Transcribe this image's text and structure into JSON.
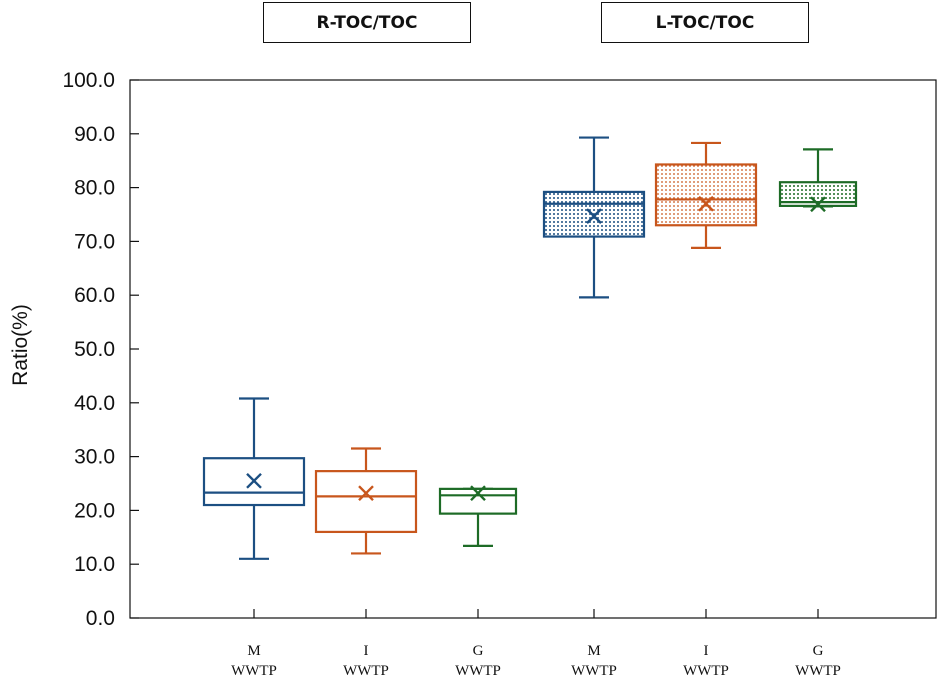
{
  "chart_data": {
    "type": "box",
    "ylabel": "Ratio(%)",
    "xlabel": "",
    "ylim": [
      0,
      100
    ],
    "yticks": [
      0,
      10,
      20,
      30,
      40,
      50,
      60,
      70,
      80,
      90,
      100
    ],
    "ytick_labels": [
      "0.0",
      "10.0",
      "20.0",
      "30.0",
      "40.0",
      "50.0",
      "60.0",
      "70.0",
      "80.0",
      "90.0",
      "100.0"
    ],
    "groups": [
      {
        "name": "R-TOC/TOC",
        "boxes": [
          {
            "label_top": "M",
            "label_bottom": "WWTP",
            "min": 11.0,
            "q1": 21.0,
            "median": 23.3,
            "q3": 29.7,
            "max": 40.8,
            "mean": 25.5,
            "color": "#1c4f82",
            "pattern": "none"
          },
          {
            "label_top": "I",
            "label_bottom": "WWTP",
            "min": 12.0,
            "q1": 16.0,
            "median": 22.6,
            "q3": 27.3,
            "max": 31.5,
            "mean": 23.2,
            "color": "#c8561c",
            "pattern": "none"
          },
          {
            "label_top": "G",
            "label_bottom": "WWTP",
            "min": 13.4,
            "q1": 19.4,
            "median": 22.8,
            "q3": 24.0,
            "max": 24.0,
            "mean": 23.2,
            "color": "#1d6b26",
            "pattern": "none"
          }
        ]
      },
      {
        "name": "L-TOC/TOC",
        "boxes": [
          {
            "label_top": "M",
            "label_bottom": "WWTP",
            "min": 59.6,
            "q1": 70.9,
            "median": 77.0,
            "q3": 79.2,
            "max": 89.3,
            "mean": 74.7,
            "color": "#1c4f82",
            "pattern": "dots"
          },
          {
            "label_top": "I",
            "label_bottom": "WWTP",
            "min": 68.8,
            "q1": 73.0,
            "median": 77.8,
            "q3": 84.3,
            "max": 88.3,
            "mean": 77.0,
            "color": "#c8561c",
            "pattern": "dots"
          },
          {
            "label_top": "G",
            "label_bottom": "WWTP",
            "min": 76.5,
            "q1": 76.6,
            "median": 77.3,
            "q3": 81.0,
            "max": 87.1,
            "mean": 76.9,
            "color": "#1d6b26",
            "pattern": "dots"
          }
        ]
      }
    ]
  }
}
